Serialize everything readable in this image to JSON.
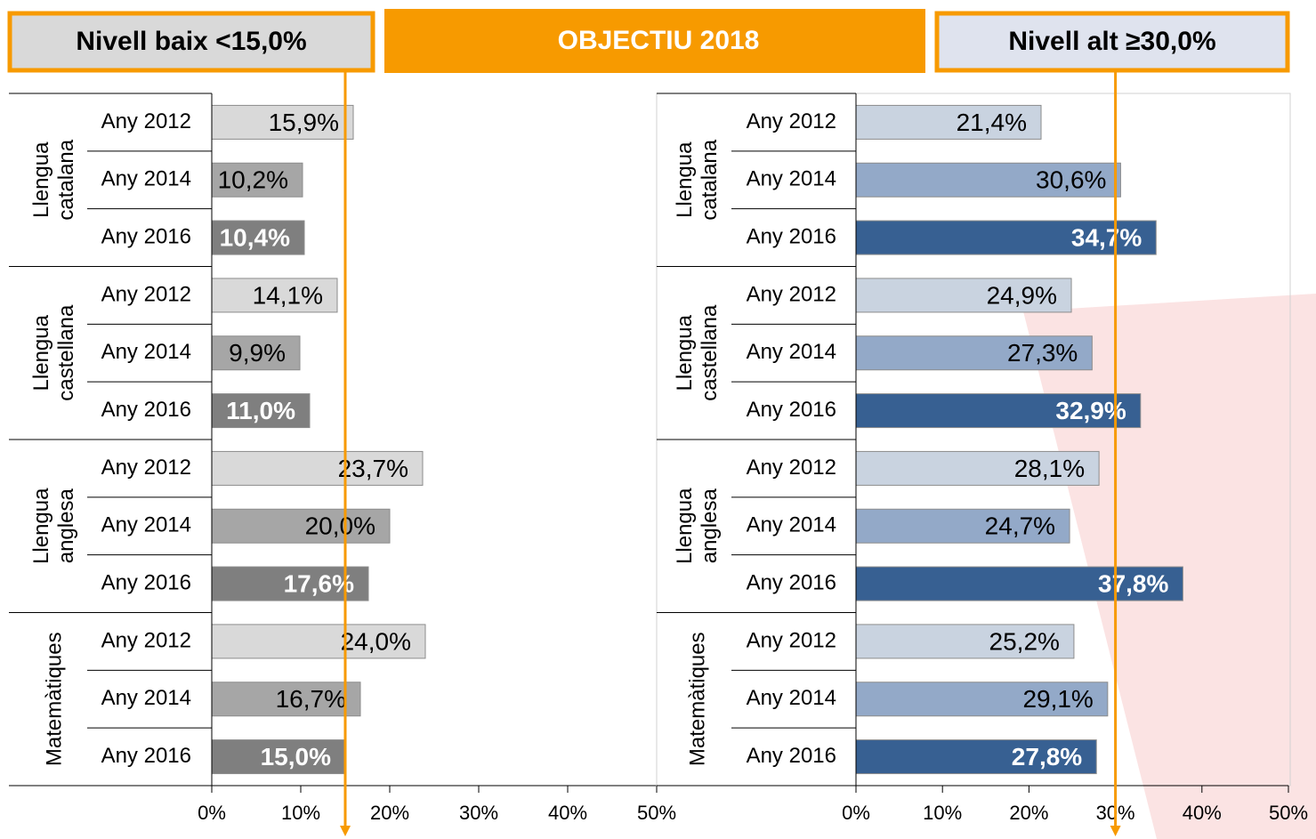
{
  "header": {
    "low": "Nivell baix <15,0%",
    "title": "OBJECTIU 2018",
    "high": "Nivell alt ≥30,0%"
  },
  "chart_data": [
    {
      "type": "bar",
      "orientation": "horizontal",
      "target": 15,
      "colors": [
        "#d9d9d9",
        "#a6a6a6",
        "#7f7f7f"
      ],
      "xlim": [
        0,
        50
      ],
      "xticks": [
        {
          "value": 0,
          "label": "0%"
        },
        {
          "value": 10,
          "label": "10%"
        },
        {
          "value": 20,
          "label": "20%"
        },
        {
          "value": 30,
          "label": "30%"
        },
        {
          "value": 40,
          "label": "40%"
        },
        {
          "value": 50,
          "label": "50%"
        }
      ],
      "groups": [
        {
          "name": "Llengua catalana",
          "categories": [
            "Any 2012",
            "Any 2014",
            "Any 2016"
          ],
          "values": [
            15.9,
            10.2,
            10.4
          ],
          "value_labels": [
            "15,9%",
            "10,2%",
            "10,4%"
          ]
        },
        {
          "name": "Llengua castellana",
          "categories": [
            "Any 2012",
            "Any 2014",
            "Any 2016"
          ],
          "values": [
            14.1,
            9.9,
            11.0
          ],
          "value_labels": [
            "14,1%",
            "9,9%",
            "11,0%"
          ]
        },
        {
          "name": "Llengua anglesa",
          "categories": [
            "Any 2012",
            "Any 2014",
            "Any 2016"
          ],
          "values": [
            23.7,
            20.0,
            17.6
          ],
          "value_labels": [
            "23,7%",
            "20,0%",
            "17,6%"
          ]
        },
        {
          "name": "Matemàtiques",
          "categories": [
            "Any 2012",
            "Any 2014",
            "Any 2016"
          ],
          "values": [
            24.0,
            16.7,
            15.0
          ],
          "value_labels": [
            "24,0%",
            "16,7%",
            "15,0%"
          ]
        }
      ]
    },
    {
      "type": "bar",
      "orientation": "horizontal",
      "target": 30,
      "colors": [
        "#c9d3e0",
        "#93a9c8",
        "#376092"
      ],
      "xlim": [
        0,
        50
      ],
      "xticks": [
        {
          "value": 0,
          "label": "0%"
        },
        {
          "value": 10,
          "label": "10%"
        },
        {
          "value": 20,
          "label": "20%"
        },
        {
          "value": 30,
          "label": "30%"
        },
        {
          "value": 40,
          "label": "40%"
        },
        {
          "value": 50,
          "label": "50%"
        }
      ],
      "groups": [
        {
          "name": "Llengua catalana",
          "categories": [
            "Any 2012",
            "Any 2014",
            "Any 2016"
          ],
          "values": [
            21.4,
            30.6,
            34.7
          ],
          "value_labels": [
            "21,4%",
            "30,6%",
            "34,7%"
          ]
        },
        {
          "name": "Llengua castellana",
          "categories": [
            "Any 2012",
            "Any 2014",
            "Any 2016"
          ],
          "values": [
            24.9,
            27.3,
            32.9
          ],
          "value_labels": [
            "24,9%",
            "27,3%",
            "32,9%"
          ]
        },
        {
          "name": "Llengua anglesa",
          "categories": [
            "Any 2012",
            "Any 2014",
            "Any 2016"
          ],
          "values": [
            28.1,
            24.7,
            37.8
          ],
          "value_labels": [
            "28,1%",
            "24,7%",
            "37,8%"
          ]
        },
        {
          "name": "Matemàtiques",
          "categories": [
            "Any 2012",
            "Any 2014",
            "Any 2016"
          ],
          "values": [
            25.2,
            29.1,
            27.8
          ],
          "value_labels": [
            "25,2%",
            "29,1%",
            "27,8%"
          ]
        }
      ]
    }
  ]
}
